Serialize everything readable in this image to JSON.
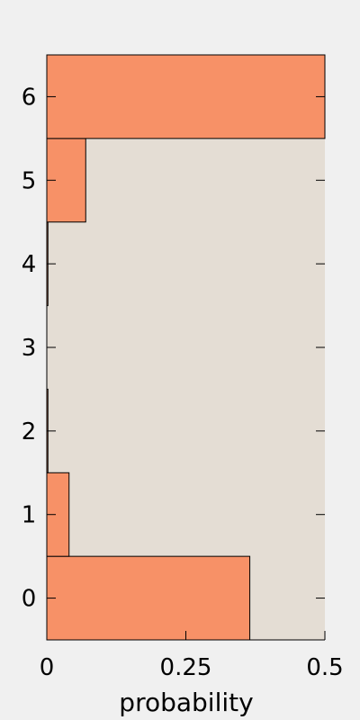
{
  "chart_data": {
    "type": "bar",
    "orientation": "horizontal",
    "title": "",
    "xlabel": "probability",
    "ylabel": "",
    "categories": [
      "0",
      "1",
      "2",
      "3",
      "4",
      "5",
      "6"
    ],
    "values": [
      0.365,
      0.04,
      0.002,
      0.0,
      0.002,
      0.07,
      0.5
    ],
    "xlim": [
      0,
      0.5
    ],
    "x_ticks": [
      "0",
      "0.25",
      "0.5"
    ],
    "x_tick_values": [
      0,
      0.25,
      0.5
    ],
    "grid": false,
    "legend": "none",
    "colors": {
      "bar_fill": "#f79167",
      "bar_stroke": "#000000",
      "plot_background": "#e4ddd4",
      "page_background": "#f0f0f0"
    }
  }
}
